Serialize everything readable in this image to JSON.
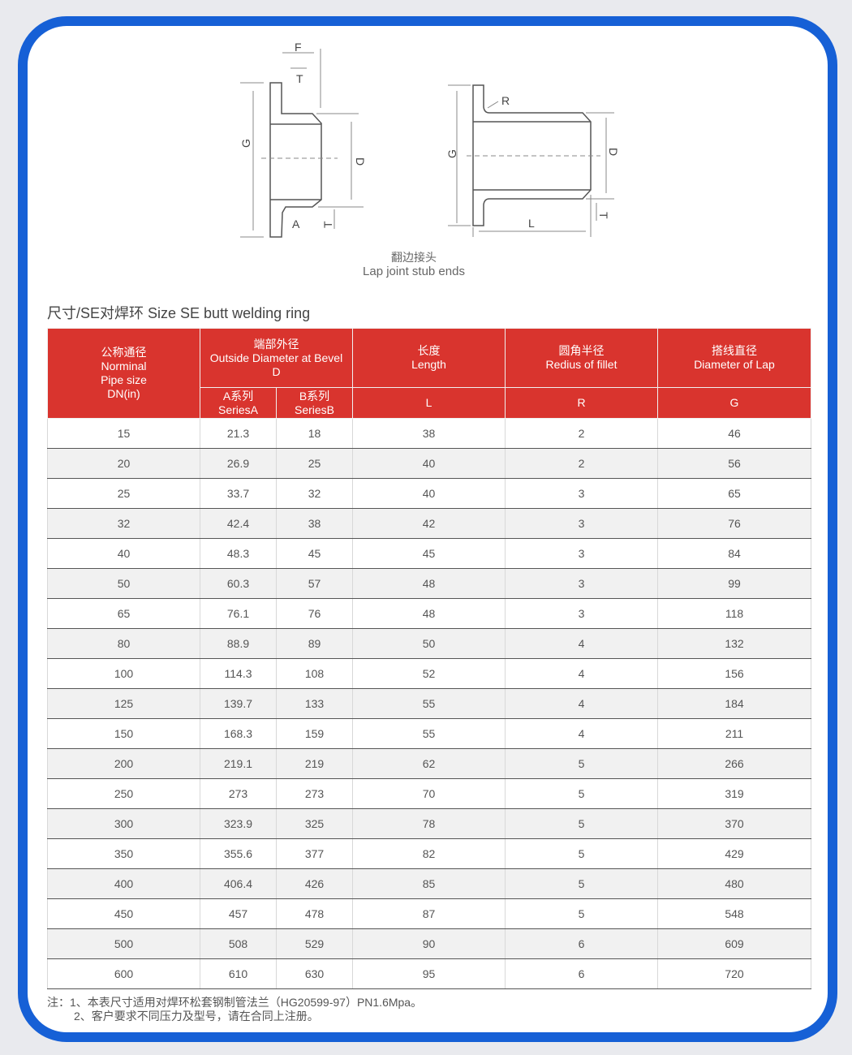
{
  "diagram": {
    "labels_left": {
      "F": "F",
      "T_top": "T",
      "G": "G",
      "D": "D",
      "A": "A",
      "T_bottom": "T"
    },
    "labels_right": {
      "R": "R",
      "G": "G",
      "D": "D",
      "L": "L",
      "T": "T"
    },
    "caption_cn": "翻边接头",
    "caption_en": "Lap joint stub ends"
  },
  "section_title": "尺寸/SE对焊环 Size SE butt welding ring",
  "table": {
    "header": {
      "dn": [
        "公称通径",
        "Norminal",
        "Pipe size",
        "DN(in)"
      ],
      "od": [
        "端部外径",
        "Outside Diameter at Bevel",
        "D"
      ],
      "od_a": [
        "A系列",
        "SeriesA"
      ],
      "od_b": [
        "B系列",
        "SeriesB"
      ],
      "length": [
        "长度",
        "Length"
      ],
      "length_sym": "L",
      "radius": [
        "圆角半径",
        "Redius of fillet"
      ],
      "radius_sym": "R",
      "lap": [
        "搭线直径",
        "Diameter of Lap"
      ],
      "lap_sym": "G"
    },
    "rows": [
      [
        "15",
        "21.3",
        "18",
        "38",
        "2",
        "46"
      ],
      [
        "20",
        "26.9",
        "25",
        "40",
        "2",
        "56"
      ],
      [
        "25",
        "33.7",
        "32",
        "40",
        "3",
        "65"
      ],
      [
        "32",
        "42.4",
        "38",
        "42",
        "3",
        "76"
      ],
      [
        "40",
        "48.3",
        "45",
        "45",
        "3",
        "84"
      ],
      [
        "50",
        "60.3",
        "57",
        "48",
        "3",
        "99"
      ],
      [
        "65",
        "76.1",
        "76",
        "48",
        "3",
        "118"
      ],
      [
        "80",
        "88.9",
        "89",
        "50",
        "4",
        "132"
      ],
      [
        "100",
        "114.3",
        "108",
        "52",
        "4",
        "156"
      ],
      [
        "125",
        "139.7",
        "133",
        "55",
        "4",
        "184"
      ],
      [
        "150",
        "168.3",
        "159",
        "55",
        "4",
        "211"
      ],
      [
        "200",
        "219.1",
        "219",
        "62",
        "5",
        "266"
      ],
      [
        "250",
        "273",
        "273",
        "70",
        "5",
        "319"
      ],
      [
        "300",
        "323.9",
        "325",
        "78",
        "5",
        "370"
      ],
      [
        "350",
        "355.6",
        "377",
        "82",
        "5",
        "429"
      ],
      [
        "400",
        "406.4",
        "426",
        "85",
        "5",
        "480"
      ],
      [
        "450",
        "457",
        "478",
        "87",
        "5",
        "548"
      ],
      [
        "500",
        "508",
        "529",
        "90",
        "6",
        "609"
      ],
      [
        "600",
        "610",
        "630",
        "95",
        "6",
        "720"
      ]
    ]
  },
  "notes": [
    "注：1、本表尺寸适用对焊环松套钢制管法兰（HG20599-97）PN1.6Mpa。",
    "2、客户要求不同压力及型号，请在合同上注册。"
  ],
  "colors": {
    "frame": "#1660d6",
    "header": "#d9342e"
  }
}
